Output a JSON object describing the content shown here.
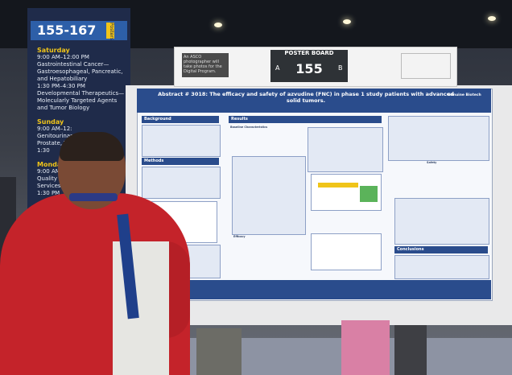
{
  "scene": {
    "description_note": "",
    "colors": {
      "poster_blue": "#2a4c8c",
      "shirt_red": "#c4232a",
      "sign_yellow": "#f0c419"
    }
  },
  "pillar_sign": {
    "range": "155-167",
    "tag": "Posters",
    "schedule": [
      {
        "day": "Saturday",
        "lines": [
          "9:00 AM–12:00 PM",
          "Gastrointestinal Cancer—",
          "Gastroesophageal, Pancreatic,",
          "and Hepatobiliary",
          "1:30 PM–4:30 PM",
          "Developmental Therapeutics—",
          "Molecularly Targeted Agents",
          "and Tumor Biology"
        ]
      },
      {
        "day": "Sunday",
        "lines": [
          "9:00 AM–12:",
          "Genitourinar",
          "Prostate, Te",
          "1:30"
        ]
      },
      {
        "day": "Monday",
        "lines": [
          "9:00 AM–12",
          "Quality Care",
          "Services Rese",
          "1:30 PM"
        ]
      }
    ]
  },
  "board_sign": {
    "photo_notice": "An ASCO photographer will take photos for the Digital Program.",
    "title": "POSTER BOARD",
    "number": "155",
    "side_a": "A",
    "side_b": "B"
  },
  "poster": {
    "title": "Abstract # 3018: The efficacy and safety of azvudine (FNC) in phase 1 study patients with advanced solid tumors.",
    "logo": "Genuine Biotech",
    "sections": {
      "background": "Background",
      "methods": "Methods",
      "results": "Results",
      "baseline": "Baseline Characteristics",
      "efficacy": "Efficacy",
      "safety": "Safety",
      "conclusions": "Conclusions"
    }
  }
}
